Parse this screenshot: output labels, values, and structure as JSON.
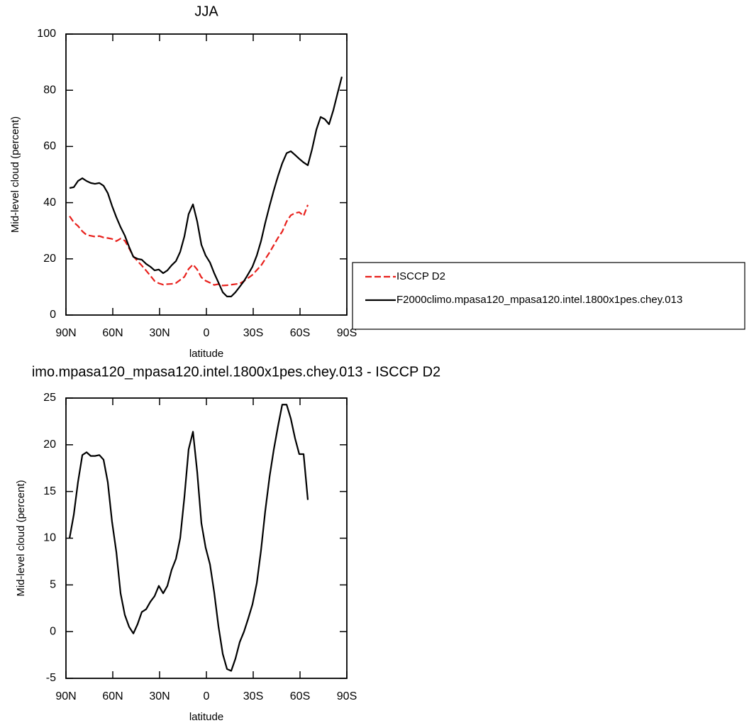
{
  "chart_data": [
    {
      "type": "line",
      "title": "JJA",
      "xlabel": "latitude",
      "ylabel": "Mid-level cloud (percent)",
      "x": [
        87.7,
        85,
        82.3,
        79.5,
        76.8,
        74.1,
        71.4,
        68.6,
        65.9,
        63.2,
        60.5,
        57.7,
        55,
        52.3,
        49.5,
        46.8,
        44.1,
        41.4,
        38.6,
        35.9,
        33.2,
        30.5,
        27.7,
        25,
        22.3,
        19.5,
        16.8,
        14.1,
        11.4,
        8.6,
        5.9,
        3.2,
        0.5,
        -2.3,
        -5,
        -7.7,
        -10.5,
        -13.2,
        -15.9,
        -18.6,
        -21.4,
        -24.1,
        -26.8,
        -29.5,
        -32.3,
        -35,
        -37.7,
        -40.5,
        -43.2,
        -45.9,
        -48.6,
        -51.4,
        -54.1,
        -56.8,
        -59.5,
        -62.3,
        -65,
        -67.7,
        -70.5,
        -73.2,
        -75.9,
        -78.6,
        -81.4,
        -84.1,
        -86.8
      ],
      "series": [
        {
          "name": "ISCCP D2",
          "color": "#e8201c",
          "dashed": true,
          "values": [
            35.2,
            33,
            31.7,
            29.8,
            28.5,
            28.2,
            27.9,
            28.1,
            27.6,
            27.4,
            27.1,
            26.3,
            27.2,
            26.5,
            23.7,
            20.9,
            19.2,
            17.6,
            15.8,
            14,
            12.1,
            11.3,
            10.8,
            11,
            11.1,
            11.4,
            12.5,
            13.6,
            16.4,
            18,
            16.2,
            13.4,
            12.2,
            11.5,
            10.7,
            11,
            10.5,
            10.6,
            10.8,
            11,
            11.2,
            12.1,
            13.2,
            14.3,
            16,
            17.6,
            19.9,
            22.3,
            24.9,
            27.5,
            29.7,
            33.3,
            35.5,
            36.3,
            36.6,
            35.3,
            39.2,
            null,
            null,
            null,
            null,
            null,
            null,
            null,
            null
          ]
        },
        {
          "name": "F2000climo.mpasa120_mpasa120.intel.1800x1pes.chey.013",
          "color": "#000000",
          "dashed": false,
          "values": [
            45.2,
            45.5,
            47.7,
            48.7,
            47.7,
            47,
            46.7,
            47,
            46,
            43.4,
            38.9,
            34.8,
            31.3,
            28.3,
            24.2,
            20.7,
            20,
            19.7,
            18.2,
            17.2,
            15.9,
            16.2,
            14.9,
            15.9,
            17.7,
            19.2,
            22.5,
            28,
            35.9,
            39.4,
            33.3,
            25,
            21.2,
            18.7,
            14.9,
            11.6,
            8.1,
            6.6,
            6.6,
            8.1,
            10.1,
            12.1,
            14.6,
            17.2,
            21.2,
            26.3,
            32.8,
            38.9,
            44.4,
            49.5,
            54,
            57.6,
            58.3,
            57,
            55.6,
            54.3,
            53.3,
            59,
            66,
            70.5,
            69.7,
            67.9,
            73,
            79,
            84.8
          ]
        }
      ],
      "xlim": [
        90,
        -90
      ],
      "xticks": [
        {
          "value": 90,
          "label": "90N"
        },
        {
          "value": 60,
          "label": "60N"
        },
        {
          "value": 30,
          "label": "30N"
        },
        0,
        {
          "value": -30,
          "label": "30S"
        },
        {
          "value": -60,
          "label": "60S"
        },
        {
          "value": -90,
          "label": "90S"
        }
      ],
      "ylim": [
        0,
        100
      ],
      "yticks": [
        0,
        20,
        40,
        60,
        80,
        100
      ],
      "legend": "right"
    },
    {
      "type": "line",
      "title": "imo.mpasa120_mpasa120.intel.1800x1pes.chey.013 - ISCCP D2",
      "xlabel": "latitude",
      "ylabel": "Mid-level cloud (percent)",
      "x": [
        87.7,
        85,
        82.3,
        79.5,
        76.8,
        74.1,
        71.4,
        68.6,
        65.9,
        63.2,
        60.5,
        57.7,
        55,
        52.3,
        49.5,
        46.8,
        44.1,
        41.4,
        38.6,
        35.9,
        33.2,
        30.5,
        27.7,
        25,
        22.3,
        19.5,
        16.8,
        14.1,
        11.4,
        8.6,
        5.9,
        3.2,
        0.5,
        -2.3,
        -5,
        -7.7,
        -10.5,
        -13.2,
        -15.9,
        -18.6,
        -21.4,
        -24.1,
        -26.8,
        -29.5,
        -32.3,
        -35,
        -37.7,
        -40.5,
        -43.2,
        -45.9,
        -48.6,
        -51.4,
        -54.1,
        -56.8,
        -59.5,
        -62.3,
        -65
      ],
      "values": [
        10,
        12.5,
        16,
        18.9,
        19.2,
        18.8,
        18.8,
        18.9,
        18.4,
        16,
        11.8,
        8.5,
        4.1,
        1.8,
        0.5,
        -0.2,
        0.8,
        2.1,
        2.4,
        3.2,
        3.8,
        4.9,
        4.1,
        4.9,
        6.6,
        7.8,
        10,
        14.4,
        19.5,
        21.4,
        17.1,
        11.6,
        9,
        7.2,
        4.2,
        0.6,
        -2.4,
        -4,
        -4.2,
        -2.9,
        -1.1,
        0,
        1.4,
        2.9,
        5.2,
        8.7,
        12.9,
        16.6,
        19.5,
        22,
        24.3,
        24.3,
        22.8,
        20.7,
        19,
        19,
        14.1
      ],
      "color": "#000000",
      "xlim": [
        90,
        -90
      ],
      "xticks": [
        {
          "value": 90,
          "label": "90N"
        },
        {
          "value": 60,
          "label": "60N"
        },
        {
          "value": 30,
          "label": "30N"
        },
        0,
        {
          "value": -30,
          "label": "30S"
        },
        {
          "value": -60,
          "label": "60S"
        },
        {
          "value": -90,
          "label": "90S"
        }
      ],
      "ylim": [
        -5,
        25
      ],
      "yticks": [
        -5,
        0,
        5,
        10,
        15,
        20,
        25
      ]
    }
  ]
}
